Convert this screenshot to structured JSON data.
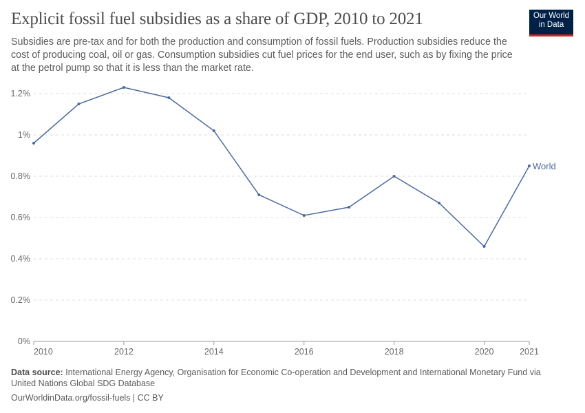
{
  "header": {
    "title": "Explicit fossil fuel subsidies as a share of GDP, 2010 to 2021",
    "subtitle": "Subsidies are pre-tax and for both the production and consumption of fossil fuels. Production subsidies reduce the cost of producing coal, oil or gas. Consumption subsidies cut fuel prices for the end user, such as by fixing the price at the petrol pump so that it is less than the market rate.",
    "logo_line1": "Our World",
    "logo_line2": "in Data"
  },
  "footer": {
    "source_label": "Data source:",
    "source_text": "International Energy Agency, Organisation for Economic Co-operation and Development and International Monetary Fund via United Nations Global SDG Database",
    "link": "OurWorldinData.org/fossil-fuels | CC BY"
  },
  "colors": {
    "series": "#4c6a9c",
    "logo_bg": "#002147",
    "logo_accent": "#ce261e"
  },
  "chart_data": {
    "type": "line",
    "title": "Explicit fossil fuel subsidies as a share of GDP, 2010 to 2021",
    "xlabel": "",
    "ylabel": "",
    "xlim": [
      2010,
      2021
    ],
    "ylim": [
      0,
      1.2
    ],
    "grid": "horizontal dashed",
    "legend": "inline-right",
    "x_ticks": [
      2010,
      2012,
      2014,
      2016,
      2018,
      2020,
      2021
    ],
    "x_tick_labels": [
      "2010",
      "2012",
      "2014",
      "2016",
      "2018",
      "2020",
      "2021"
    ],
    "y_ticks": [
      0,
      0.2,
      0.4,
      0.6,
      0.8,
      1,
      1.2
    ],
    "y_tick_labels": [
      "0%",
      "0.2%",
      "0.4%",
      "0.6%",
      "0.8%",
      "1%",
      "1.2%"
    ],
    "x": [
      2010,
      2011,
      2012,
      2013,
      2014,
      2015,
      2016,
      2017,
      2018,
      2019,
      2020,
      2021
    ],
    "series": [
      {
        "name": "World",
        "values": [
          0.96,
          1.15,
          1.23,
          1.18,
          1.02,
          0.71,
          0.61,
          0.65,
          0.8,
          0.67,
          0.46,
          0.85
        ]
      }
    ]
  }
}
